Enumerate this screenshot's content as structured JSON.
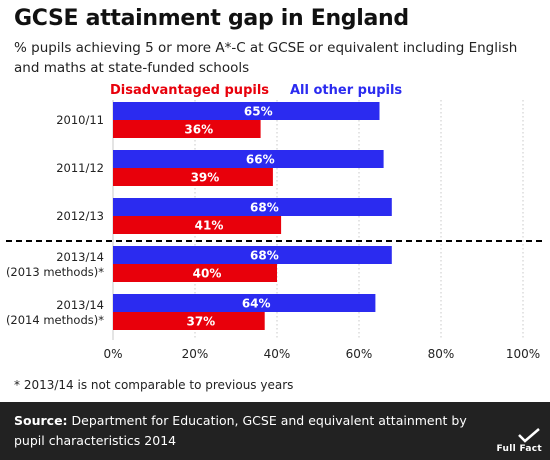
{
  "title": "GCSE attainment gap in England",
  "subtitle": "% pupils achieving 5 or more A*-C at GCSE or equivalent including English and maths at state-funded schools",
  "footnote": "* 2013/14 is not comparable to previous years",
  "source": {
    "label": "Source:",
    "text": "Department for Education, GCSE and equivalent attainment by pupil characteristics 2014"
  },
  "logo": {
    "text": "Full Fact",
    "icon": "checkmark-icon"
  },
  "colors": {
    "all_other": "#2b2bf0",
    "disadvantaged": "#e8000b"
  },
  "chart_data": {
    "type": "bar",
    "orientation": "horizontal",
    "categories": [
      "2010/11",
      "2011/12",
      "2012/13",
      "2013/14\n(2013 methods)*",
      "2013/14\n(2014 methods)*"
    ],
    "series": [
      {
        "name": "All other pupils",
        "values": [
          65,
          66,
          68,
          68,
          64
        ],
        "labels": [
          "65%",
          "66%",
          "68%",
          "68%",
          "64%"
        ]
      },
      {
        "name": "Disadvantaged pupils",
        "values": [
          36,
          39,
          41,
          40,
          37
        ],
        "labels": [
          "36%",
          "39%",
          "41%",
          "40%",
          "37%"
        ]
      }
    ],
    "xlim": [
      0,
      100
    ],
    "xticks": [
      "0%",
      "20%",
      "40%",
      "60%",
      "80%",
      "100%"
    ],
    "grid": true,
    "legend": "top",
    "separator_after_category": 2
  }
}
